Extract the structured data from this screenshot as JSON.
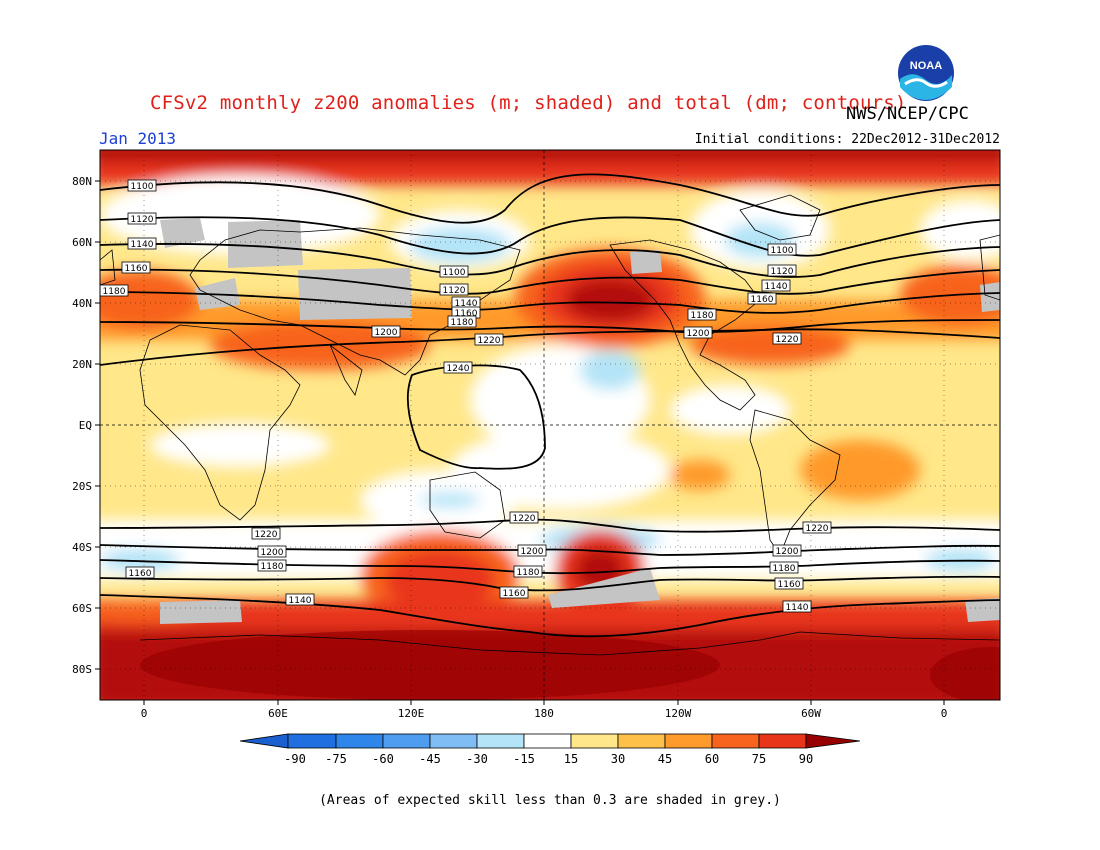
{
  "header": {
    "title": "CFSv2 monthly z200 anomalies (m; shaded) and total (dm; contours)",
    "agency": "NWS/NCEP/CPC",
    "valid_month": "Jan 2013",
    "initial_conditions": "Initial conditions: 22Dec2012-31Dec2012"
  },
  "logo": {
    "text": "NOAA",
    "icon": "noaa-logo"
  },
  "map": {
    "lat_labels": [
      "80N",
      "60N",
      "40N",
      "20N",
      "EQ",
      "20S",
      "40S",
      "60S",
      "80S"
    ],
    "lon_labels": [
      "0",
      "60E",
      "120E",
      "180",
      "120W",
      "60W",
      "0"
    ]
  },
  "contour_labels": {
    "c1100": "1100",
    "c1120": "1120",
    "c1140": "1140",
    "c1160": "1160",
    "c1180": "1180",
    "c1200": "1200",
    "c1220": "1220",
    "c1240": "1240"
  },
  "colorbar": {
    "labels": [
      "-90",
      "-75",
      "-60",
      "-45",
      "-30",
      "-15",
      "15",
      "30",
      "45",
      "60",
      "75",
      "90"
    ],
    "colors": [
      "#1f6fe0",
      "#2f86ea",
      "#4f9df0",
      "#80bdf5",
      "#b4e4f7",
      "#ffffff",
      "#ffe78a",
      "#ffc04a",
      "#ff9a2c",
      "#f8641e",
      "#e8351a",
      "#b40e0c"
    ],
    "low_color": "#1a5fd0",
    "high_color": "#960000",
    "grey_note_color": "#c4c4c4"
  },
  "footnote": "(Areas of expected skill less than 0.3 are shaded in grey.)"
}
